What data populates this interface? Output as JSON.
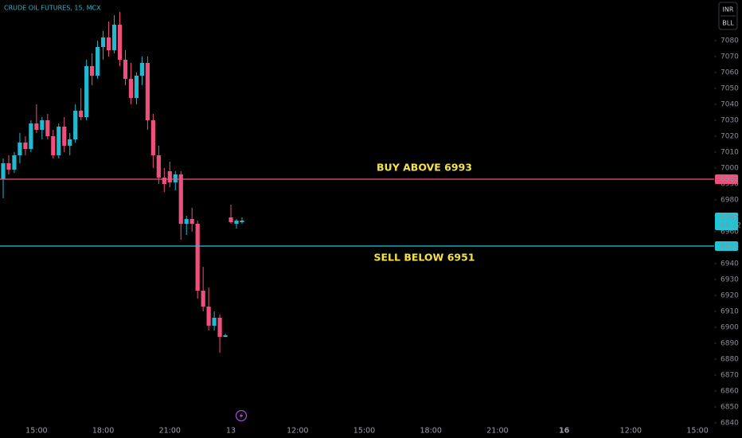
{
  "chart_data": {
    "type": "candlestick",
    "title": "CRUDE OIL FUTURES, 15, MCX",
    "currency": "INR",
    "unit": "BLL",
    "up_color": "#22b8cf",
    "down_color": "#ef4f7c",
    "categories": [
      null,
      null,
      null,
      null,
      null,
      null,
      "15:00",
      null,
      null,
      null,
      null,
      null,
      null,
      null,
      null,
      null,
      null,
      null,
      "18:00",
      null,
      null,
      null,
      null,
      null,
      null,
      null,
      null,
      null,
      null,
      null,
      "21:00",
      null,
      null,
      null,
      null,
      null,
      null,
      null,
      null,
      null,
      null,
      "13",
      null,
      null,
      null,
      null,
      null,
      null,
      null,
      null,
      null,
      null,
      null,
      "12:00",
      null,
      null,
      null,
      null,
      null,
      null,
      null,
      null,
      null,
      null,
      null,
      "15:00",
      null,
      null,
      null,
      null,
      null,
      null,
      null,
      null,
      null,
      null,
      null,
      "18:00",
      null,
      null,
      null,
      null,
      null,
      null,
      null,
      null,
      null,
      null,
      null,
      "21:00",
      null,
      null,
      null,
      null,
      null,
      null,
      null,
      null,
      null,
      null,
      null,
      "16",
      null,
      null,
      null,
      null,
      null,
      null,
      null,
      null,
      null,
      null,
      null,
      "12:00",
      null,
      null,
      null,
      null,
      null,
      null,
      null,
      null,
      null,
      null,
      null,
      "15:00",
      null,
      null
    ],
    "open": [
      6993,
      7003,
      6999,
      7008,
      7016,
      7012,
      7028,
      7024,
      7030,
      7020,
      7008,
      7026,
      7014,
      7018,
      7036,
      7032,
      7064,
      7058,
      7076,
      7082,
      7074,
      7090,
      7068,
      7056,
      7044,
      7058,
      7066,
      7030,
      7008,
      6994,
      6998,
      6991,
      6996,
      6965,
      6968,
      6965,
      6923,
      6913,
      6901,
      6906,
      6894,
      6969,
      6965,
      6966,
      null,
      null,
      null,
      null,
      null,
      null,
      null,
      null,
      null,
      null,
      null,
      null,
      null,
      null,
      null,
      null,
      null,
      null,
      null,
      null,
      null,
      null,
      null,
      null,
      null,
      null,
      null,
      null,
      null,
      null,
      null,
      null,
      null,
      null,
      null,
      null,
      null,
      null,
      null,
      null,
      null,
      null,
      null,
      null,
      null,
      null,
      null,
      null,
      null,
      null,
      null,
      null,
      null,
      null,
      null,
      null,
      null,
      null,
      null,
      null,
      null,
      null,
      null,
      null,
      null,
      null,
      null,
      null,
      null,
      null,
      null,
      null,
      null,
      null,
      null,
      null,
      null,
      null,
      null,
      null,
      null,
      null,
      null,
      null
    ],
    "high": [
      7006,
      7008,
      7010,
      7022,
      7020,
      7030,
      7040,
      7032,
      7034,
      7024,
      7028,
      7032,
      7022,
      7040,
      7050,
      7068,
      7072,
      7080,
      7086,
      7092,
      7096,
      7098,
      7074,
      7066,
      7060,
      7070,
      7070,
      7034,
      7014,
      7000,
      7004,
      6998,
      6998,
      6970,
      6975,
      6967,
      6938,
      6925,
      6910,
      6908,
      6896,
      6977,
      6968,
      6969,
      null,
      null,
      null,
      null,
      null,
      null,
      null,
      null,
      null,
      null,
      null,
      null,
      null,
      null,
      null,
      null,
      null,
      null,
      null,
      null,
      null,
      null,
      null,
      null,
      null,
      null,
      null,
      null,
      null,
      null,
      null,
      null,
      null,
      null,
      null,
      null,
      null,
      null,
      null,
      null,
      null,
      null,
      null,
      null,
      null,
      null,
      null,
      null,
      null,
      null,
      null,
      null,
      null,
      null,
      null,
      null,
      null,
      null,
      null,
      null,
      null,
      null,
      null,
      null,
      null,
      null,
      null,
      null,
      null,
      null,
      null,
      null,
      null,
      null,
      null,
      null,
      null,
      null,
      null,
      null,
      null,
      null,
      null,
      null
    ],
    "low": [
      6981,
      6996,
      6997,
      7003,
      7008,
      7010,
      7022,
      7018,
      7018,
      7006,
      7006,
      7010,
      7008,
      7016,
      7030,
      7030,
      7052,
      7056,
      7068,
      7070,
      7072,
      7064,
      7052,
      7040,
      7040,
      7052,
      7024,
      7000,
      6990,
      6985,
      6988,
      6986,
      6955,
      6958,
      6960,
      6918,
      6910,
      6898,
      6898,
      6884,
      6894,
      6965,
      6962,
      6965,
      null,
      null,
      null,
      null,
      null,
      null,
      null,
      null,
      null,
      null,
      null,
      null,
      null,
      null,
      null,
      null,
      null,
      null,
      null,
      null,
      null,
      null,
      null,
      null,
      null,
      null,
      null,
      null,
      null,
      null,
      null,
      null,
      null,
      null,
      null,
      null,
      null,
      null,
      null,
      null,
      null,
      null,
      null,
      null,
      null,
      null,
      null,
      null,
      null,
      null,
      null,
      null,
      null,
      null,
      null,
      null,
      null,
      null,
      null,
      null,
      null,
      null,
      null,
      null,
      null,
      null,
      null,
      null,
      null,
      null,
      null,
      null,
      null,
      null,
      null,
      null,
      null,
      null,
      null,
      null,
      null,
      null,
      null,
      null
    ],
    "close": [
      7003,
      6999,
      7008,
      7016,
      7012,
      7028,
      7024,
      7030,
      7020,
      7008,
      7026,
      7014,
      7018,
      7036,
      7032,
      7064,
      7058,
      7076,
      7082,
      7074,
      7090,
      7068,
      7056,
      7044,
      7058,
      7066,
      7030,
      7008,
      6994,
      6990,
      6991,
      6996,
      6965,
      6968,
      6965,
      6923,
      6913,
      6901,
      6906,
      6894,
      6895,
      6966,
      6967,
      6967,
      null,
      null,
      null,
      null,
      null,
      null,
      null,
      null,
      null,
      null,
      null,
      null,
      null,
      null,
      null,
      null,
      null,
      null,
      null,
      null,
      null,
      null,
      null,
      null,
      null,
      null,
      null,
      null,
      null,
      null,
      null,
      null,
      null,
      null,
      null,
      null,
      null,
      null,
      null,
      null,
      null,
      null,
      null,
      null,
      null,
      null,
      null,
      null,
      null,
      null,
      null,
      null,
      null,
      null,
      null,
      null,
      null,
      null,
      null,
      null,
      null,
      null,
      null,
      null,
      null,
      null,
      null,
      null,
      null,
      null,
      null,
      null,
      null,
      null,
      null,
      null,
      null,
      null,
      null,
      null,
      null,
      null,
      null,
      null
    ],
    "ylim": [
      6840,
      7105.5
    ],
    "yticks": [
      6840,
      6850,
      6860,
      6870,
      6880,
      6890,
      6900,
      6910,
      6920,
      6930,
      6940,
      6950,
      6960,
      6970,
      6980,
      6990,
      7000,
      7010,
      7020,
      7030,
      7040,
      7050,
      7060,
      7070,
      7080
    ],
    "levels": [
      {
        "value": 6993,
        "color": "#ef4f7c",
        "note": "BUY ABOVE 6993"
      },
      {
        "value": 6951,
        "color": "#22c5d6",
        "note": "SELL BELOW 6951"
      }
    ],
    "last_price": 6967,
    "countdown": "06:32",
    "last_color": "#22c5d6"
  }
}
